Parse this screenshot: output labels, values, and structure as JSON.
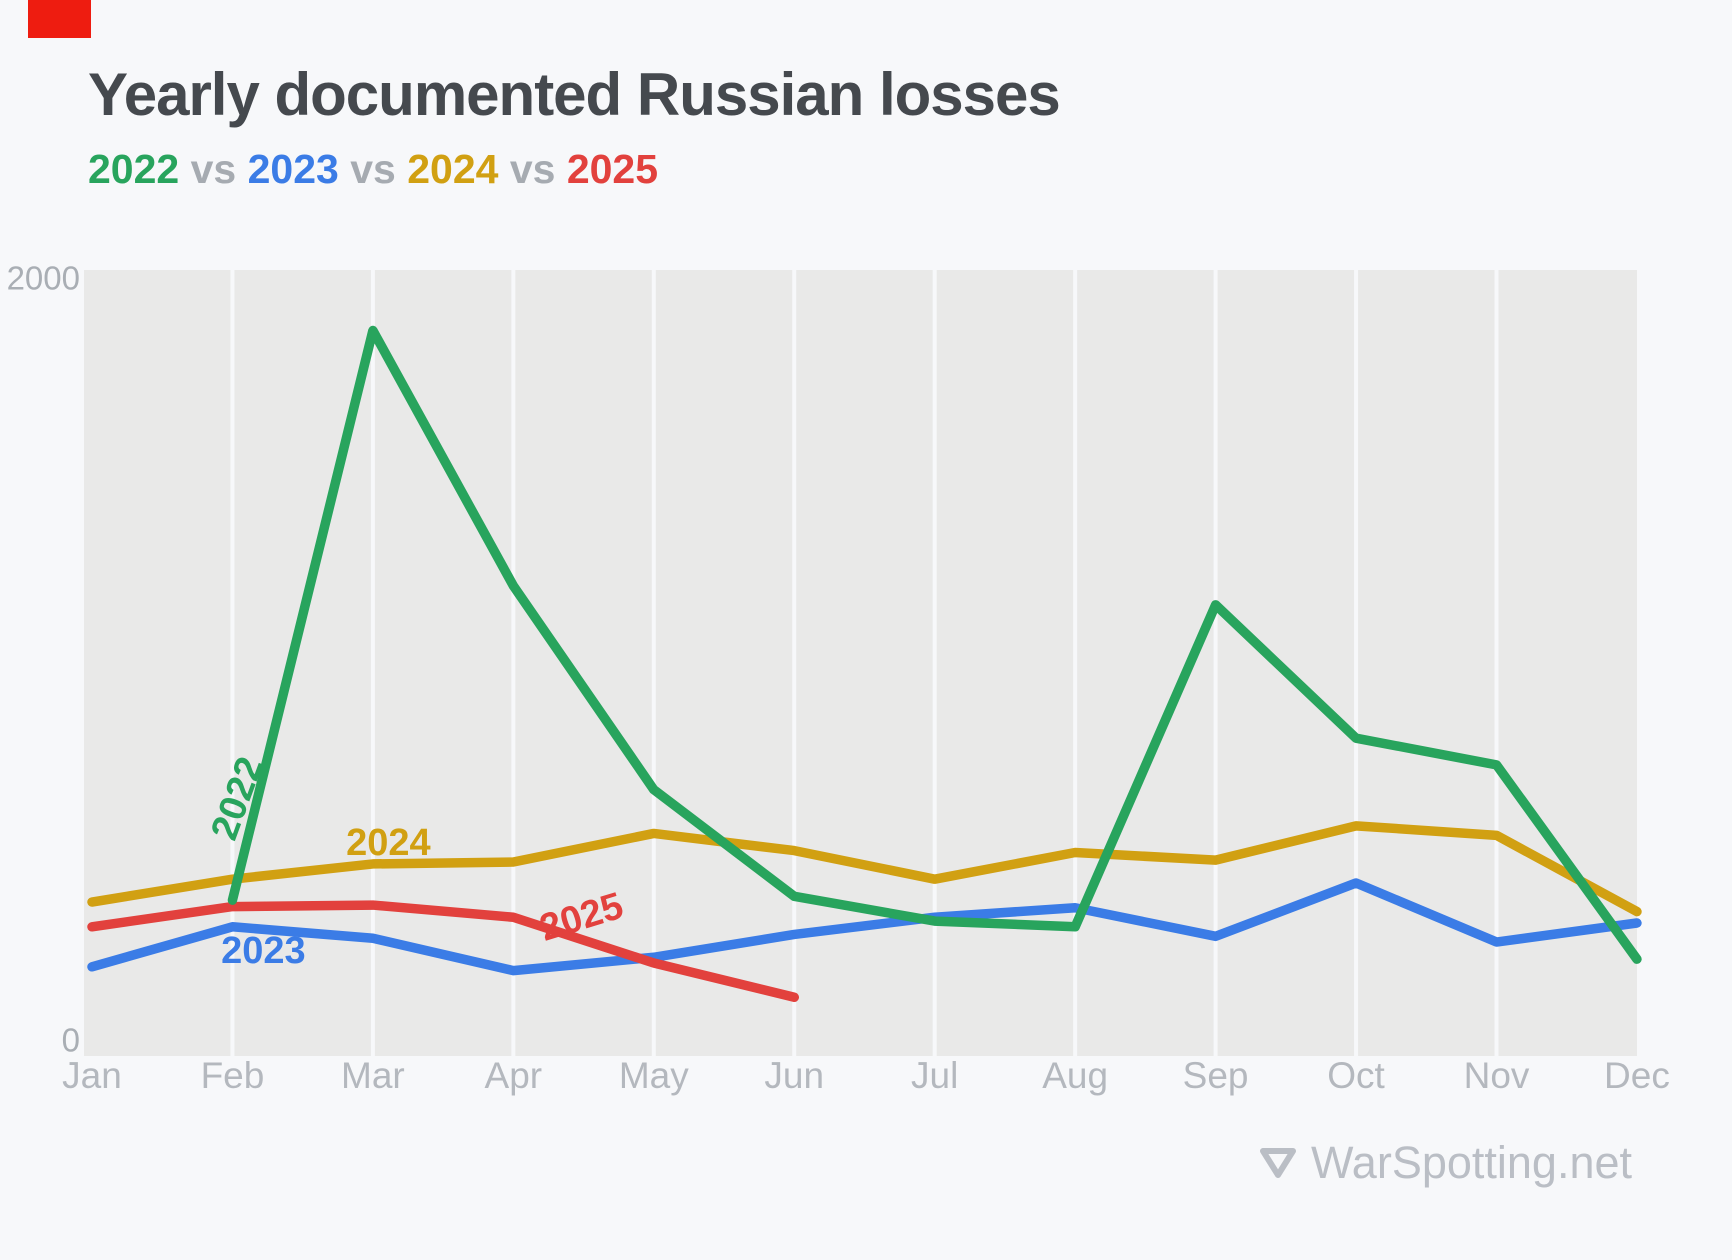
{
  "page": {
    "background": "#f7f8fa",
    "corner_marker_color": "#ee1c10"
  },
  "header": {
    "title": "Yearly documented Russian losses",
    "subtitle_parts": [
      {
        "text": "2022",
        "color": "#28a45d"
      },
      {
        "text": " vs ",
        "color": "#a6abb1"
      },
      {
        "text": "2023",
        "color": "#3b7ce6"
      },
      {
        "text": " vs ",
        "color": "#a6abb1"
      },
      {
        "text": "2024",
        "color": "#d1a012"
      },
      {
        "text": " vs ",
        "color": "#a6abb1"
      },
      {
        "text": "2025",
        "color": "#e2413d"
      }
    ]
  },
  "watermark": {
    "icon": "down-triangle-icon",
    "text": "WarSpotting.net",
    "color": "#babec5"
  },
  "chart_data": {
    "type": "line",
    "title": "Yearly documented Russian losses",
    "categories": [
      "Jan",
      "Feb",
      "Mar",
      "Apr",
      "May",
      "Jun",
      "Jul",
      "Aug",
      "Sep",
      "Oct",
      "Nov",
      "Dec"
    ],
    "ylim": [
      0,
      2000
    ],
    "yticks": [
      {
        "value": 2000,
        "label": "2000"
      },
      {
        "value": 0,
        "label": "0"
      }
    ],
    "grid": "vertical",
    "plot_bg": "#e9e9e8",
    "grid_color": "#f7f8fa",
    "axis_label_color": "#b4b8be",
    "ytick_color": "#a9aeb4",
    "legend_position": "inline-line-labels",
    "series": [
      {
        "name": "2023",
        "color": "#3b7ce6",
        "values": [
          200,
          305,
          275,
          190,
          225,
          285,
          330,
          355,
          280,
          420,
          265,
          315
        ]
      },
      {
        "name": "2024",
        "color": "#d1a012",
        "values": [
          370,
          430,
          470,
          475,
          550,
          505,
          430,
          500,
          480,
          570,
          545,
          345
        ]
      },
      {
        "name": "2025",
        "color": "#e2413d",
        "values": [
          305,
          358,
          362,
          330,
          210,
          120,
          null,
          null,
          null,
          null,
          null,
          null
        ]
      },
      {
        "name": "2022",
        "color": "#28a45d",
        "values": [
          null,
          375,
          1870,
          1200,
          665,
          385,
          320,
          305,
          1150,
          800,
          730,
          220
        ]
      }
    ],
    "annotations": [
      {
        "text": "2022",
        "series": "2022",
        "month_index": 1.05,
        "value": 640,
        "rotation": -70
      },
      {
        "text": "2023",
        "series": "2023",
        "month_index": 1.22,
        "value": 236,
        "rotation": 0
      },
      {
        "text": "2024",
        "series": "2024",
        "month_index": 2.11,
        "value": 520,
        "rotation": 0
      },
      {
        "text": "2025",
        "series": "2025",
        "month_index": 3.49,
        "value": 325,
        "rotation": -17
      }
    ]
  }
}
